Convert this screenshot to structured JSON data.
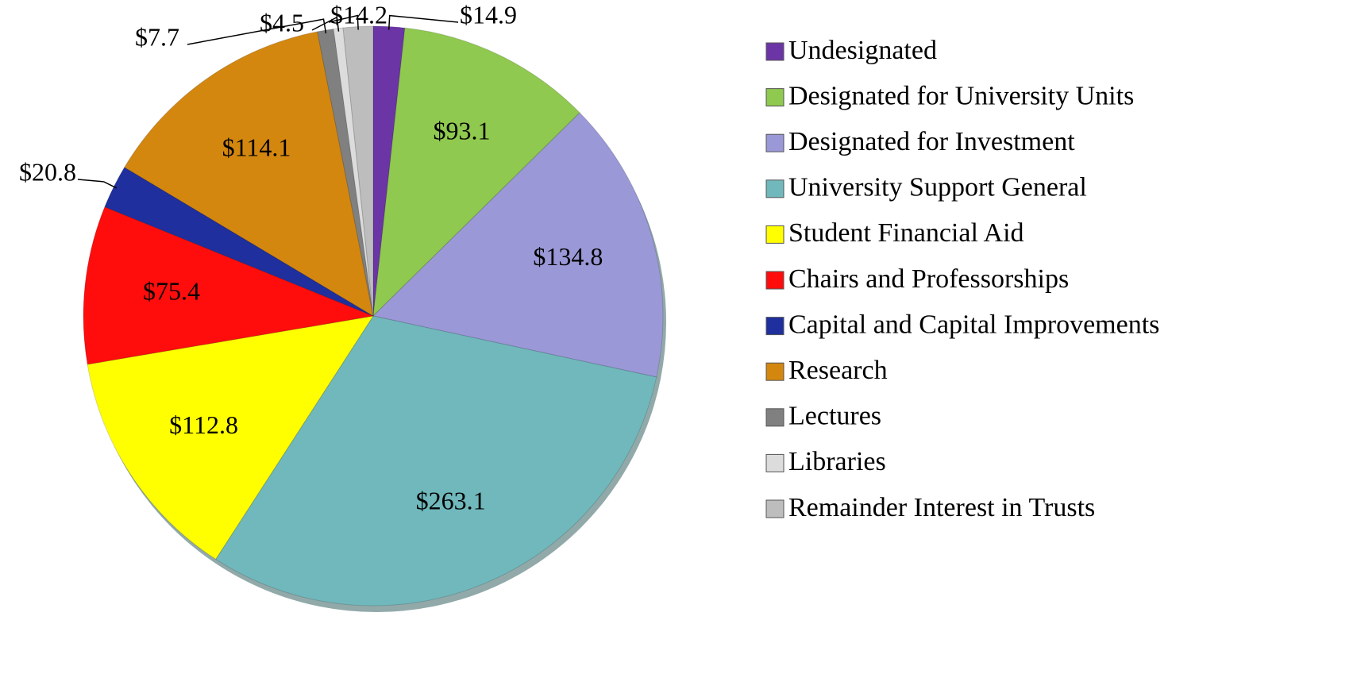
{
  "chart_data": {
    "type": "pie",
    "categories": [
      "Undesignated",
      "Designated for University Units",
      "Designated for Investment",
      "University Support General",
      "Student Financial Aid",
      "Chairs and Professorships",
      "Capital and Capital Improvements",
      "Research",
      "Lectures",
      "Libraries",
      "Remainder Interest in Trusts"
    ],
    "values": [
      14.9,
      93.1,
      134.8,
      263.1,
      112.8,
      75.4,
      20.8,
      114.1,
      7.7,
      4.5,
      14.2
    ],
    "value_labels": [
      "$14.9",
      "$93.1",
      "$134.8",
      "$263.1",
      "$112.8",
      "$75.4",
      "$20.8",
      "$114.1",
      "$7.7",
      "$4.5",
      "$14.2"
    ],
    "colors": [
      "#6b35a6",
      "#8fc94f",
      "#9a98d6",
      "#70b8bc",
      "#ffff00",
      "#ff0d0d",
      "#1f2f9e",
      "#d4870f",
      "#808080",
      "#dcdcdc",
      "#bdbdbd"
    ],
    "legend": "right"
  }
}
